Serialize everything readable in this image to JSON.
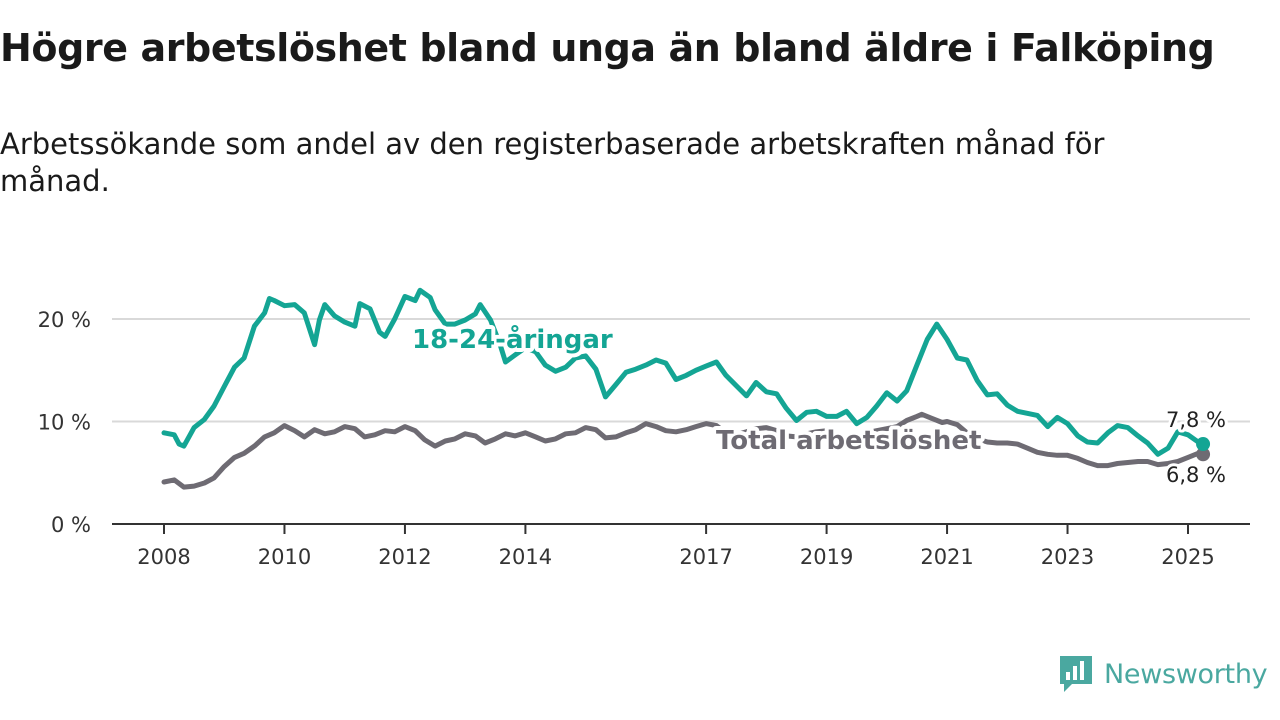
{
  "title": "Högre arbetslöshet bland unga än bland äldre i Falköping",
  "subtitle": "Arbetssökande som andel av den registerbaserade arbetskraften månad för månad.",
  "logo": {
    "text": "Newsworthy",
    "icon": "bar-chart-speech-icon"
  },
  "colors": {
    "youth": "#14a594",
    "total": "#6e6b73",
    "grid": "#d9d9d9",
    "axis": "#333333",
    "logo": "#4aa8a0"
  },
  "chart_data": {
    "type": "line",
    "ylim": [
      0,
      25
    ],
    "xlim": [
      2008.0,
      2026.0
    ],
    "y_ticks": [
      {
        "value": 0,
        "label": "0 %"
      },
      {
        "value": 10,
        "label": "10 %"
      },
      {
        "value": 20,
        "label": "20 %"
      }
    ],
    "x_ticks": [
      {
        "value": 2008,
        "label": "2008"
      },
      {
        "value": 2010,
        "label": "2010"
      },
      {
        "value": 2012,
        "label": "2012"
      },
      {
        "value": 2014,
        "label": "2014"
      },
      {
        "value": 2017,
        "label": "2017"
      },
      {
        "value": 2019,
        "label": "2019"
      },
      {
        "value": 2021,
        "label": "2021"
      },
      {
        "value": 2023,
        "label": "2023"
      },
      {
        "value": 2025,
        "label": "2025"
      }
    ],
    "grid": true,
    "series": [
      {
        "name": "Total arbetslöshet",
        "end_label": "6,8 %",
        "points": [
          [
            2008.0,
            4.1
          ],
          [
            2008.17,
            4.3
          ],
          [
            2008.33,
            3.6
          ],
          [
            2008.5,
            3.7
          ],
          [
            2008.67,
            4.0
          ],
          [
            2008.83,
            4.5
          ],
          [
            2009.0,
            5.6
          ],
          [
            2009.17,
            6.5
          ],
          [
            2009.33,
            6.9
          ],
          [
            2009.5,
            7.6
          ],
          [
            2009.67,
            8.5
          ],
          [
            2009.83,
            8.9
          ],
          [
            2010.0,
            9.6
          ],
          [
            2010.17,
            9.1
          ],
          [
            2010.33,
            8.5
          ],
          [
            2010.5,
            9.2
          ],
          [
            2010.67,
            8.8
          ],
          [
            2010.83,
            9.0
          ],
          [
            2011.0,
            9.5
          ],
          [
            2011.17,
            9.3
          ],
          [
            2011.33,
            8.5
          ],
          [
            2011.5,
            8.7
          ],
          [
            2011.67,
            9.1
          ],
          [
            2011.83,
            9.0
          ],
          [
            2012.0,
            9.5
          ],
          [
            2012.17,
            9.1
          ],
          [
            2012.33,
            8.2
          ],
          [
            2012.5,
            7.6
          ],
          [
            2012.67,
            8.1
          ],
          [
            2012.83,
            8.3
          ],
          [
            2013.0,
            8.8
          ],
          [
            2013.17,
            8.6
          ],
          [
            2013.33,
            7.9
          ],
          [
            2013.5,
            8.3
          ],
          [
            2013.67,
            8.8
          ],
          [
            2013.83,
            8.6
          ],
          [
            2014.0,
            8.9
          ],
          [
            2014.17,
            8.5
          ],
          [
            2014.33,
            8.1
          ],
          [
            2014.5,
            8.3
          ],
          [
            2014.67,
            8.8
          ],
          [
            2014.83,
            8.9
          ],
          [
            2015.0,
            9.4
          ],
          [
            2015.17,
            9.2
          ],
          [
            2015.33,
            8.4
          ],
          [
            2015.5,
            8.5
          ],
          [
            2015.67,
            8.9
          ],
          [
            2015.83,
            9.2
          ],
          [
            2016.0,
            9.8
          ],
          [
            2016.17,
            9.5
          ],
          [
            2016.33,
            9.1
          ],
          [
            2016.5,
            9.0
          ],
          [
            2016.67,
            9.2
          ],
          [
            2016.83,
            9.5
          ],
          [
            2017.0,
            9.8
          ],
          [
            2017.17,
            9.6
          ],
          [
            2017.33,
            8.9
          ],
          [
            2017.5,
            8.7
          ],
          [
            2017.67,
            9.0
          ],
          [
            2017.83,
            9.3
          ],
          [
            2018.0,
            9.4
          ],
          [
            2018.17,
            9.1
          ],
          [
            2018.33,
            8.6
          ],
          [
            2018.5,
            8.5
          ],
          [
            2018.67,
            8.8
          ],
          [
            2018.83,
            9.0
          ],
          [
            2019.0,
            9.1
          ],
          [
            2019.17,
            8.8
          ],
          [
            2019.33,
            8.3
          ],
          [
            2019.5,
            8.4
          ],
          [
            2019.67,
            8.9
          ],
          [
            2019.83,
            9.1
          ],
          [
            2020.0,
            9.3
          ],
          [
            2020.17,
            9.5
          ],
          [
            2020.33,
            10.1
          ],
          [
            2020.5,
            10.5
          ],
          [
            2020.58,
            10.7
          ],
          [
            2020.75,
            10.3
          ],
          [
            2020.92,
            9.9
          ],
          [
            2021.0,
            10.0
          ],
          [
            2021.17,
            9.7
          ],
          [
            2021.33,
            8.9
          ],
          [
            2021.5,
            8.3
          ],
          [
            2021.67,
            8.0
          ],
          [
            2021.83,
            7.9
          ],
          [
            2022.0,
            7.9
          ],
          [
            2022.17,
            7.8
          ],
          [
            2022.33,
            7.4
          ],
          [
            2022.5,
            7.0
          ],
          [
            2022.67,
            6.8
          ],
          [
            2022.83,
            6.7
          ],
          [
            2023.0,
            6.7
          ],
          [
            2023.17,
            6.4
          ],
          [
            2023.33,
            6.0
          ],
          [
            2023.5,
            5.7
          ],
          [
            2023.67,
            5.7
          ],
          [
            2023.83,
            5.9
          ],
          [
            2024.0,
            6.0
          ],
          [
            2024.17,
            6.1
          ],
          [
            2024.33,
            6.1
          ],
          [
            2024.5,
            5.8
          ],
          [
            2024.67,
            5.9
          ],
          [
            2024.83,
            6.1
          ],
          [
            2025.0,
            6.5
          ],
          [
            2025.17,
            6.9
          ],
          [
            2025.25,
            6.8
          ]
        ]
      },
      {
        "name": "18-24-åringar",
        "end_label": "7,8 %",
        "points": [
          [
            2008.0,
            8.9
          ],
          [
            2008.17,
            8.7
          ],
          [
            2008.25,
            7.8
          ],
          [
            2008.33,
            7.6
          ],
          [
            2008.5,
            9.4
          ],
          [
            2008.67,
            10.2
          ],
          [
            2008.83,
            11.5
          ],
          [
            2009.0,
            13.4
          ],
          [
            2009.17,
            15.3
          ],
          [
            2009.33,
            16.2
          ],
          [
            2009.5,
            19.3
          ],
          [
            2009.67,
            20.6
          ],
          [
            2009.75,
            22.0
          ],
          [
            2009.83,
            21.8
          ],
          [
            2010.0,
            21.3
          ],
          [
            2010.17,
            21.4
          ],
          [
            2010.33,
            20.6
          ],
          [
            2010.5,
            17.5
          ],
          [
            2010.58,
            19.9
          ],
          [
            2010.67,
            21.4
          ],
          [
            2010.83,
            20.3
          ],
          [
            2011.0,
            19.7
          ],
          [
            2011.17,
            19.3
          ],
          [
            2011.25,
            21.5
          ],
          [
            2011.42,
            21.0
          ],
          [
            2011.58,
            18.7
          ],
          [
            2011.67,
            18.3
          ],
          [
            2011.83,
            20.0
          ],
          [
            2012.0,
            22.2
          ],
          [
            2012.17,
            21.8
          ],
          [
            2012.25,
            22.8
          ],
          [
            2012.42,
            22.1
          ],
          [
            2012.5,
            20.9
          ],
          [
            2012.67,
            19.5
          ],
          [
            2012.83,
            19.5
          ],
          [
            2013.0,
            19.9
          ],
          [
            2013.17,
            20.5
          ],
          [
            2013.25,
            21.4
          ],
          [
            2013.42,
            19.9
          ],
          [
            2013.58,
            17.5
          ],
          [
            2013.67,
            15.8
          ],
          [
            2013.83,
            16.5
          ],
          [
            2014.0,
            17.2
          ],
          [
            2014.17,
            16.8
          ],
          [
            2014.33,
            15.5
          ],
          [
            2014.5,
            14.9
          ],
          [
            2014.67,
            15.3
          ],
          [
            2014.83,
            16.2
          ],
          [
            2015.0,
            16.4
          ],
          [
            2015.17,
            15.1
          ],
          [
            2015.33,
            12.4
          ],
          [
            2015.5,
            13.6
          ],
          [
            2015.67,
            14.8
          ],
          [
            2015.83,
            15.1
          ],
          [
            2016.0,
            15.5
          ],
          [
            2016.17,
            16.0
          ],
          [
            2016.33,
            15.7
          ],
          [
            2016.5,
            14.1
          ],
          [
            2016.67,
            14.5
          ],
          [
            2016.83,
            15.0
          ],
          [
            2017.0,
            15.4
          ],
          [
            2017.17,
            15.8
          ],
          [
            2017.33,
            14.5
          ],
          [
            2017.5,
            13.5
          ],
          [
            2017.67,
            12.5
          ],
          [
            2017.83,
            13.8
          ],
          [
            2018.0,
            12.9
          ],
          [
            2018.17,
            12.7
          ],
          [
            2018.33,
            11.3
          ],
          [
            2018.5,
            10.1
          ],
          [
            2018.67,
            10.9
          ],
          [
            2018.83,
            11.0
          ],
          [
            2019.0,
            10.5
          ],
          [
            2019.17,
            10.5
          ],
          [
            2019.33,
            11.0
          ],
          [
            2019.5,
            9.8
          ],
          [
            2019.67,
            10.4
          ],
          [
            2019.83,
            11.5
          ],
          [
            2020.0,
            12.8
          ],
          [
            2020.17,
            12.0
          ],
          [
            2020.33,
            13.0
          ],
          [
            2020.5,
            15.5
          ],
          [
            2020.67,
            18.0
          ],
          [
            2020.83,
            19.5
          ],
          [
            2021.0,
            18.0
          ],
          [
            2021.17,
            16.2
          ],
          [
            2021.33,
            16.0
          ],
          [
            2021.5,
            14.0
          ],
          [
            2021.67,
            12.6
          ],
          [
            2021.83,
            12.7
          ],
          [
            2022.0,
            11.6
          ],
          [
            2022.17,
            11.0
          ],
          [
            2022.33,
            10.8
          ],
          [
            2022.5,
            10.6
          ],
          [
            2022.67,
            9.5
          ],
          [
            2022.83,
            10.4
          ],
          [
            2023.0,
            9.8
          ],
          [
            2023.17,
            8.6
          ],
          [
            2023.33,
            8.0
          ],
          [
            2023.5,
            7.9
          ],
          [
            2023.67,
            8.9
          ],
          [
            2023.83,
            9.6
          ],
          [
            2024.0,
            9.4
          ],
          [
            2024.17,
            8.6
          ],
          [
            2024.33,
            7.9
          ],
          [
            2024.5,
            6.8
          ],
          [
            2024.67,
            7.4
          ],
          [
            2024.83,
            9.0
          ],
          [
            2025.0,
            8.7
          ],
          [
            2025.17,
            8.0
          ],
          [
            2025.25,
            7.8
          ]
        ]
      }
    ]
  }
}
